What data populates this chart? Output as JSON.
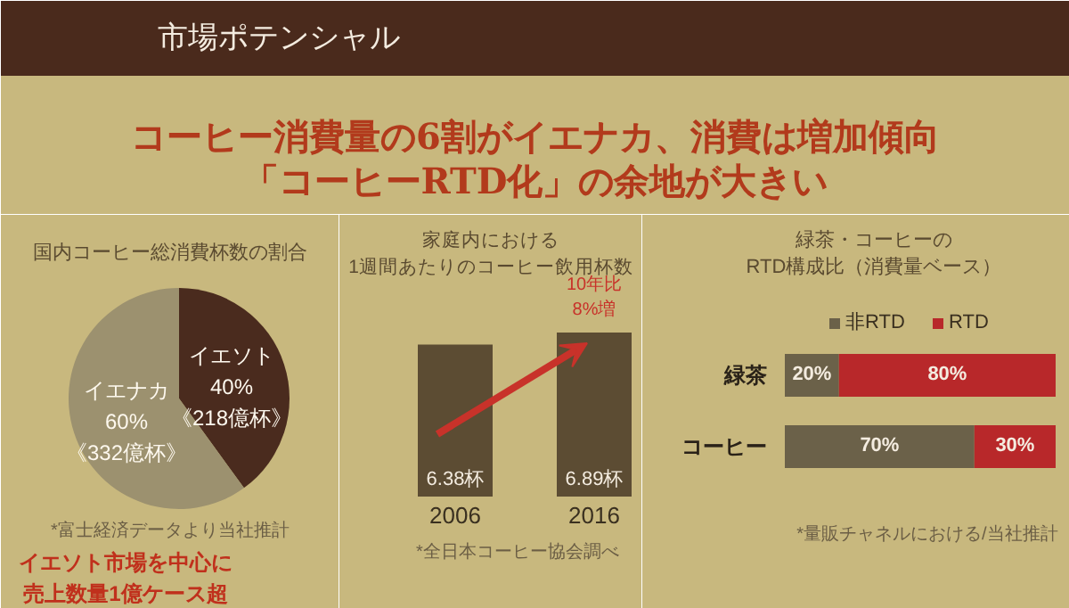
{
  "chart_data": [
    {
      "type": "other",
      "title": "市場ポテンシャル",
      "annotations": [
        "コーヒー消費量の6割がイエナカ、消費は増加傾向",
        "「コーヒーRTD化」の余地が大きい"
      ]
    },
    {
      "type": "pie",
      "title": "国内コーヒー総消費杯数の割合",
      "categories": [
        "イエソト",
        "イエナカ"
      ],
      "values": [
        40,
        60
      ],
      "colors": [
        "#4a2b1e",
        "#9c916f"
      ],
      "value_labels": [
        "40%\n《218億杯》",
        "60%\n《332億杯》"
      ],
      "annotations": [
        "*富士経済データより当社推計",
        "イエソト市場を中心に売上数量1億ケース超"
      ]
    },
    {
      "type": "bar",
      "title": "家庭内における\n1週間あたりのコーヒー飲用杯数",
      "categories": [
        "2006",
        "2016"
      ],
      "values": [
        6.38,
        6.89
      ],
      "color": "#5c4c33",
      "value_labels": [
        "6.38杯",
        "6.89杯"
      ],
      "annotations": [
        {
          "text": "10年比\n8%増",
          "x": "2016",
          "y": 6.89
        },
        "*全日本コーヒー協会調べ"
      ]
    },
    {
      "type": "bar",
      "orientation": "horizontal",
      "stacked": true,
      "title": "緑茶・コーヒーの\nRTD構成比（消費量ベース）",
      "categories": [
        "緑茶",
        "コーヒー"
      ],
      "legend": "top",
      "series": [
        {
          "name": "非RTD",
          "color": "#6b6149",
          "values": [
            20,
            70
          ],
          "value_labels": [
            "20%",
            "70%"
          ]
        },
        {
          "name": "RTD",
          "color": "#b8282a",
          "values": [
            80,
            30
          ],
          "value_labels": [
            "80%",
            "30%"
          ]
        }
      ],
      "annotations": [
        "*量販チャネルにおける/当社推計"
      ]
    }
  ]
}
